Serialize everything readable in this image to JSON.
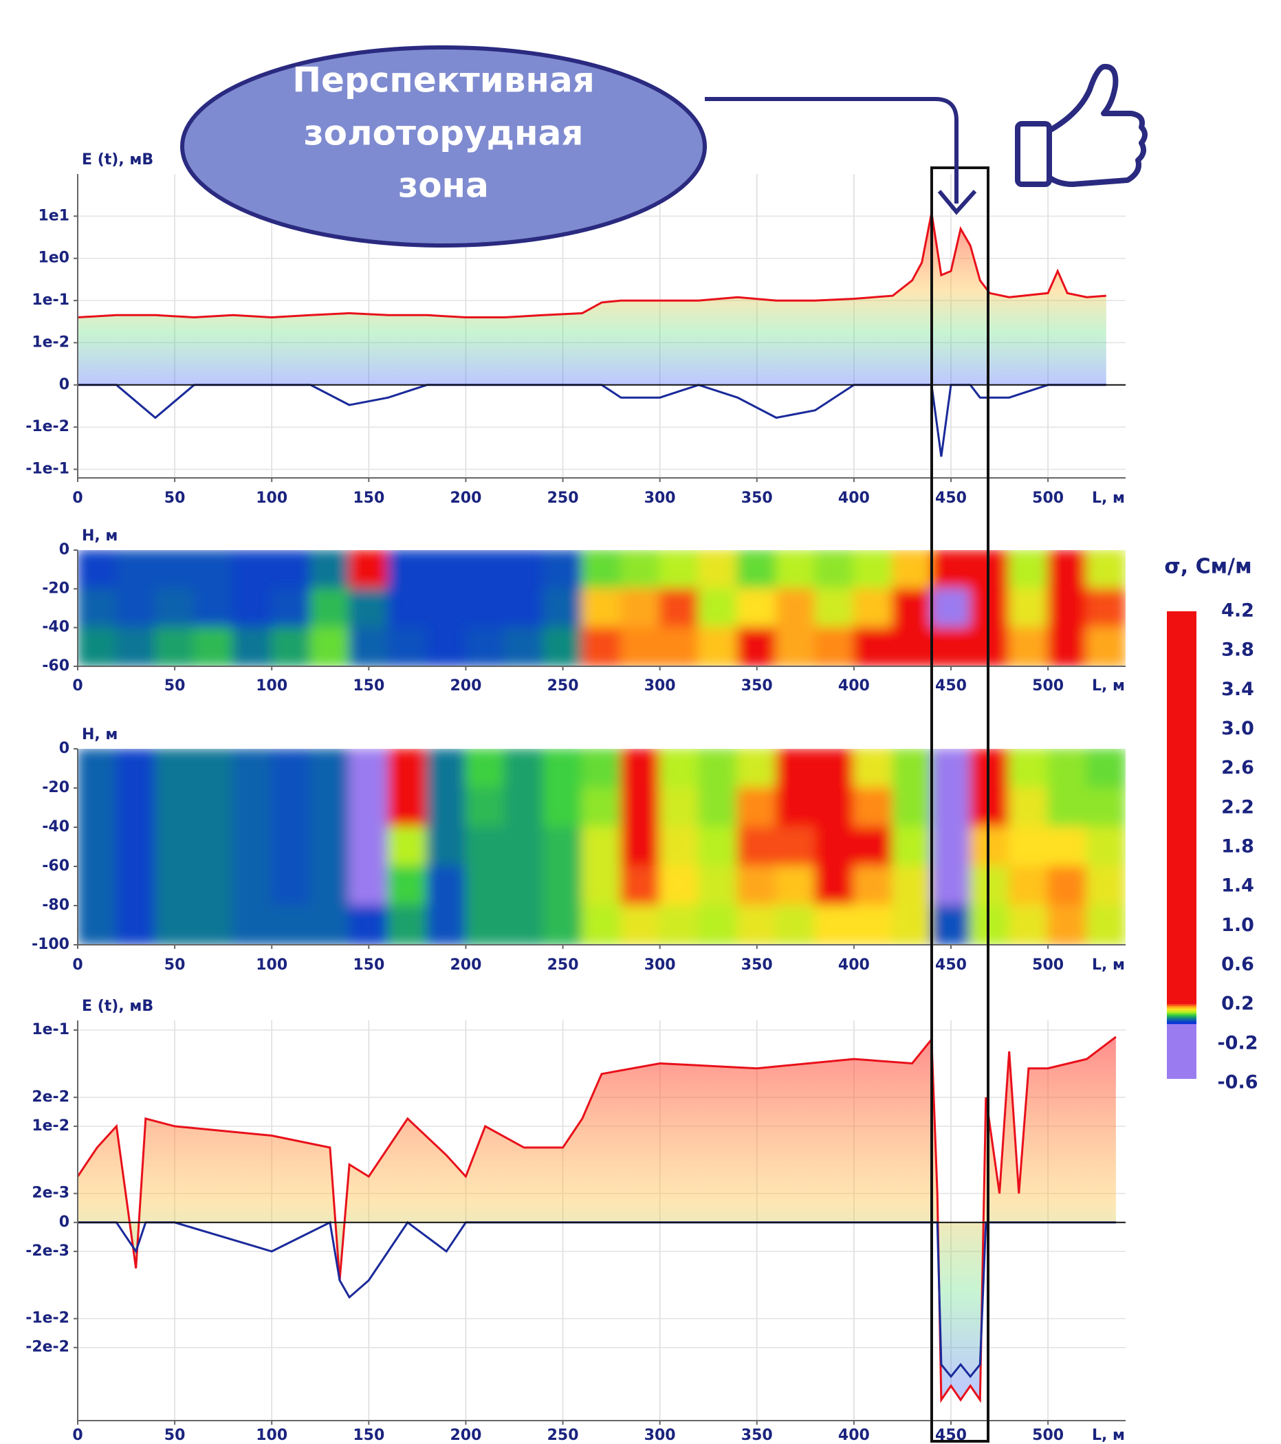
{
  "chart_data": [
    {
      "type": "line",
      "ylabel": "E (t), мВ",
      "xlabel": "L, м",
      "grid": true,
      "yscale": "symlog",
      "linthresh": 0.001,
      "xlim": [
        0,
        540
      ],
      "xticks": [
        0,
        50,
        100,
        150,
        200,
        250,
        300,
        350,
        400,
        450,
        500
      ],
      "ylim": [
        -0.16,
        100
      ],
      "yticks": [
        {
          "value": 10,
          "label": "1e1"
        },
        {
          "value": 1,
          "label": "1e0"
        },
        {
          "value": 0.1,
          "label": "1e-1"
        },
        {
          "value": 0.01,
          "label": "1e-2"
        },
        0,
        {
          "value": -0.01,
          "label": "-1e-2"
        },
        {
          "value": -0.1,
          "label": "-1e-1"
        }
      ],
      "x": [
        0,
        20,
        40,
        60,
        80,
        100,
        120,
        140,
        160,
        180,
        200,
        220,
        240,
        260,
        270,
        280,
        300,
        320,
        340,
        360,
        380,
        400,
        420,
        430,
        435,
        440,
        445,
        450,
        455,
        460,
        465,
        470,
        480,
        500,
        505,
        510,
        520,
        530
      ],
      "series": [
        {
          "color": "#e8101a",
          "values": [
            0.04,
            0.045,
            0.045,
            0.04,
            0.045,
            0.04,
            0.045,
            0.05,
            0.045,
            0.045,
            0.04,
            0.04,
            0.045,
            0.05,
            0.09,
            0.1,
            0.1,
            0.1,
            0.12,
            0.1,
            0.1,
            0.11,
            0.13,
            0.3,
            0.8,
            12,
            0.4,
            0.5,
            5,
            2,
            0.3,
            0.15,
            0.12,
            0.15,
            0.5,
            0.15,
            0.12,
            0.13
          ]
        },
        {
          "color": "#1a2a9a",
          "values": [
            0,
            0,
            -0.006,
            0,
            0,
            0,
            0,
            -0.003,
            -0.002,
            0,
            0,
            0,
            0,
            0,
            0,
            -0.002,
            -0.002,
            -0.001,
            -0.002,
            -0.006,
            -0.004,
            0,
            -0.001,
            0,
            0,
            0,
            -0.05,
            0,
            0,
            0,
            -0.002,
            -0.002,
            -0.002,
            0,
            0,
            0,
            0,
            0
          ]
        }
      ]
    },
    {
      "type": "heatmap",
      "ylabel": "H, м",
      "xlabel": "L, м",
      "xlim": [
        0,
        540
      ],
      "xticks": [
        0,
        50,
        100,
        150,
        200,
        250,
        300,
        350,
        400,
        450,
        500
      ],
      "ylim": [
        -60,
        0
      ],
      "yticks": [
        0,
        -20,
        -40,
        -60
      ],
      "x": [
        10,
        30,
        50,
        70,
        90,
        110,
        130,
        150,
        170,
        190,
        210,
        230,
        250,
        270,
        290,
        310,
        330,
        350,
        370,
        390,
        410,
        430,
        450,
        470,
        490,
        510,
        530
      ],
      "y": [
        -10,
        -30,
        -50
      ],
      "values": [
        [
          0.02,
          0.03,
          0.03,
          0.03,
          0.02,
          0.02,
          0.05,
          0.21,
          0.02,
          0.02,
          0.02,
          0.02,
          0.03,
          0.1,
          0.11,
          0.12,
          0.14,
          0.1,
          0.12,
          0.11,
          0.12,
          0.16,
          0.25,
          0.22,
          0.12,
          0.21,
          0.13
        ],
        [
          0.04,
          0.03,
          0.04,
          0.03,
          0.02,
          0.03,
          0.08,
          0.05,
          0.02,
          0.02,
          0.02,
          0.02,
          0.04,
          0.16,
          0.17,
          0.19,
          0.12,
          0.15,
          0.17,
          0.13,
          0.16,
          0.2,
          -0.1,
          0.24,
          0.14,
          0.22,
          0.19
        ],
        [
          0.06,
          0.05,
          0.07,
          0.08,
          0.05,
          0.07,
          0.1,
          0.04,
          0.03,
          0.02,
          0.03,
          0.04,
          0.06,
          0.19,
          0.18,
          0.18,
          0.16,
          0.2,
          0.17,
          0.18,
          0.21,
          0.25,
          0.3,
          0.25,
          0.17,
          0.23,
          0.17
        ]
      ]
    },
    {
      "type": "heatmap",
      "ylabel": "H, м",
      "xlabel": "L, м",
      "xlim": [
        0,
        540
      ],
      "xticks": [
        0,
        50,
        100,
        150,
        200,
        250,
        300,
        350,
        400,
        450,
        500
      ],
      "ylim": [
        -100,
        0
      ],
      "yticks": [
        0,
        -20,
        -40,
        -60,
        -80,
        -100
      ],
      "x": [
        10,
        30,
        50,
        70,
        90,
        110,
        130,
        150,
        170,
        190,
        210,
        230,
        250,
        270,
        290,
        310,
        330,
        350,
        370,
        390,
        410,
        430,
        450,
        470,
        490,
        510,
        530
      ],
      "y": [
        -10,
        -30,
        -50,
        -70,
        -90
      ],
      "values": [
        [
          0.04,
          0.02,
          0.05,
          0.05,
          0.04,
          0.03,
          0.04,
          -0.2,
          0.25,
          0.05,
          0.09,
          0.07,
          0.09,
          0.1,
          0.2,
          0.12,
          0.11,
          0.13,
          0.2,
          0.22,
          0.14,
          0.11,
          -0.2,
          0.22,
          0.12,
          0.11,
          0.1
        ],
        [
          0.04,
          0.02,
          0.05,
          0.05,
          0.04,
          0.03,
          0.04,
          -0.2,
          0.2,
          0.05,
          0.08,
          0.07,
          0.09,
          0.11,
          0.21,
          0.13,
          0.11,
          0.18,
          0.21,
          0.23,
          0.18,
          0.11,
          -0.2,
          0.22,
          0.14,
          0.11,
          0.11
        ],
        [
          0.04,
          0.02,
          0.05,
          0.05,
          0.04,
          0.03,
          0.04,
          -0.2,
          0.12,
          0.05,
          0.07,
          0.07,
          0.08,
          0.13,
          0.22,
          0.14,
          0.12,
          0.19,
          0.19,
          0.22,
          0.2,
          0.12,
          -0.2,
          0.16,
          0.15,
          0.15,
          0.13
        ],
        [
          0.04,
          0.02,
          0.05,
          0.05,
          0.04,
          0.03,
          0.04,
          -0.1,
          0.09,
          0.03,
          0.07,
          0.07,
          0.08,
          0.13,
          0.19,
          0.15,
          0.13,
          0.17,
          0.16,
          0.2,
          0.17,
          0.14,
          -0.2,
          0.13,
          0.16,
          0.18,
          0.14
        ],
        [
          0.04,
          0.02,
          0.05,
          0.05,
          0.04,
          0.04,
          0.04,
          0.02,
          0.07,
          0.03,
          0.07,
          0.07,
          0.08,
          0.12,
          0.14,
          0.13,
          0.12,
          0.14,
          0.13,
          0.15,
          0.15,
          0.14,
          0.03,
          0.12,
          0.14,
          0.17,
          0.13
        ]
      ]
    },
    {
      "type": "line",
      "ylabel": "E (t), мВ",
      "xlabel": "L, м",
      "grid": true,
      "yscale": "symlog",
      "linthresh": 0.001,
      "xlim": [
        0,
        540
      ],
      "xticks": [
        0,
        50,
        100,
        150,
        200,
        250,
        300,
        350,
        400,
        450,
        500
      ],
      "ylim": [
        -0.115,
        0.126
      ],
      "yticks": [
        {
          "value": 0.1,
          "label": "1e-1"
        },
        {
          "value": 0.02,
          "label": "2e-2"
        },
        {
          "value": 0.01,
          "label": "1e-2"
        },
        {
          "value": 0.002,
          "label": "2e-3"
        },
        0,
        {
          "value": -0.002,
          "label": "-2e-3"
        },
        {
          "value": -0.01,
          "label": "-1e-2"
        },
        {
          "value": -0.02,
          "label": "-2e-2"
        }
      ],
      "x": [
        0,
        10,
        20,
        30,
        35,
        50,
        100,
        130,
        135,
        140,
        150,
        170,
        190,
        200,
        210,
        230,
        250,
        260,
        270,
        300,
        350,
        400,
        430,
        440,
        443,
        445,
        450,
        455,
        460,
        465,
        468,
        475,
        480,
        485,
        490,
        500,
        520,
        535
      ],
      "series": [
        {
          "color": "#e8101a",
          "values": [
            0.003,
            0.006,
            0.01,
            -0.003,
            0.012,
            0.01,
            0.008,
            0.006,
            -0.004,
            0.004,
            0.003,
            0.012,
            0.005,
            0.003,
            0.01,
            0.006,
            0.006,
            0.012,
            0.035,
            0.045,
            0.04,
            0.05,
            0.045,
            0.08,
            0.002,
            -0.07,
            -0.05,
            -0.07,
            -0.05,
            -0.07,
            0.02,
            0.002,
            0.06,
            0.002,
            0.04,
            0.04,
            0.05,
            0.085
          ]
        },
        {
          "color": "#1a2a9a",
          "values": [
            0,
            0,
            0,
            -0.002,
            0,
            0,
            -0.002,
            0,
            -0.004,
            -0.006,
            -0.004,
            0,
            -0.002,
            0,
            0,
            0,
            0,
            0,
            0,
            0,
            0,
            0,
            0,
            0,
            0,
            -0.03,
            -0.04,
            -0.03,
            -0.04,
            -0.03,
            0,
            0,
            0,
            0,
            0,
            0,
            0,
            0
          ]
        }
      ]
    }
  ],
  "colorbar": {
    "title": "σ, См/м",
    "ticks": [
      4.2,
      3.8,
      3.4,
      {
        "value": 3,
        "label": "3.0"
      },
      2.6,
      2.2,
      1.8,
      1.4,
      {
        "value": 1,
        "label": "1.0"
      },
      0.6,
      0.2,
      -0.2,
      -0.6
    ]
  },
  "callout": {
    "lines": [
      "Перспективная",
      "золоторудная",
      "зона"
    ]
  }
}
